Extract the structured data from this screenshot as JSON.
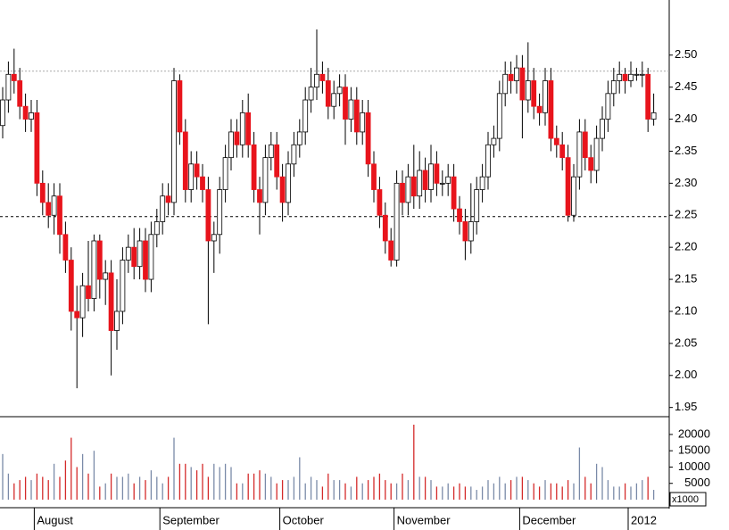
{
  "chart_data": {
    "type": "candlestick",
    "categories": [
      null,
      null,
      null,
      null,
      null,
      null,
      "August",
      null,
      null,
      null,
      null,
      null,
      null,
      null,
      null,
      null,
      null,
      null,
      null,
      null,
      null,
      null,
      null,
      null,
      null,
      null,
      null,
      null,
      "September",
      null,
      null,
      null,
      null,
      null,
      null,
      null,
      null,
      null,
      null,
      null,
      null,
      null,
      null,
      null,
      null,
      null,
      null,
      null,
      null,
      "October",
      null,
      null,
      null,
      null,
      null,
      null,
      null,
      null,
      null,
      null,
      null,
      null,
      null,
      null,
      null,
      null,
      null,
      null,
      null,
      "November",
      null,
      null,
      null,
      null,
      null,
      null,
      null,
      null,
      null,
      null,
      null,
      null,
      null,
      null,
      null,
      null,
      null,
      null,
      null,
      null,
      null,
      "December",
      null,
      null,
      null,
      null,
      null,
      null,
      null,
      null,
      null,
      null,
      null,
      null,
      null,
      null,
      null,
      null,
      null,
      null,
      "2012",
      null,
      null,
      null,
      null
    ],
    "open": [
      2.39,
      2.43,
      2.47,
      2.46,
      2.42,
      2.4,
      2.41,
      2.3,
      2.27,
      2.25,
      2.28,
      2.22,
      2.18,
      2.1,
      2.09,
      2.14,
      2.12,
      2.21,
      2.15,
      2.16,
      2.07,
      2.1,
      2.18,
      2.2,
      2.17,
      2.21,
      2.15,
      2.22,
      2.24,
      2.28,
      2.27,
      2.46,
      2.38,
      2.29,
      2.33,
      2.31,
      2.29,
      2.21,
      2.22,
      2.29,
      2.34,
      2.38,
      2.36,
      2.41,
      2.36,
      2.29,
      2.27,
      2.34,
      2.36,
      2.31,
      2.27,
      2.33,
      2.36,
      2.38,
      2.43,
      2.45,
      2.47,
      2.46,
      2.42,
      2.44,
      2.45,
      2.4,
      2.43,
      2.38,
      2.41,
      2.33,
      2.29,
      2.25,
      2.21,
      2.18,
      2.3,
      2.27,
      2.31,
      2.28,
      2.32,
      2.29,
      2.33,
      2.3,
      2.3,
      2.31,
      2.26,
      2.24,
      2.21,
      2.24,
      2.29,
      2.31,
      2.36,
      2.37,
      2.44,
      2.47,
      2.46,
      2.48,
      2.43,
      2.46,
      2.42,
      2.41,
      2.46,
      2.37,
      2.36,
      2.34,
      2.25,
      2.31,
      2.38,
      2.34,
      2.32,
      2.37,
      2.4,
      2.44,
      2.46,
      2.47,
      2.46,
      2.47,
      2.47,
      2.47,
      2.4
    ],
    "high": [
      2.45,
      2.49,
      2.51,
      2.48,
      2.44,
      2.43,
      2.43,
      2.32,
      2.3,
      2.3,
      2.3,
      2.24,
      2.2,
      2.14,
      2.16,
      2.21,
      2.22,
      2.22,
      2.18,
      2.18,
      2.15,
      2.2,
      2.22,
      2.23,
      2.23,
      2.23,
      2.24,
      2.26,
      2.3,
      2.3,
      2.48,
      2.47,
      2.4,
      2.35,
      2.35,
      2.33,
      2.31,
      2.24,
      2.31,
      2.36,
      2.4,
      2.4,
      2.43,
      2.44,
      2.38,
      2.31,
      2.36,
      2.38,
      2.38,
      2.33,
      2.35,
      2.38,
      2.4,
      2.45,
      2.48,
      2.54,
      2.49,
      2.48,
      2.46,
      2.47,
      2.47,
      2.45,
      2.45,
      2.43,
      2.43,
      2.35,
      2.31,
      2.27,
      2.23,
      2.32,
      2.32,
      2.33,
      2.36,
      2.35,
      2.34,
      2.36,
      2.35,
      2.32,
      2.33,
      2.33,
      2.28,
      2.26,
      2.3,
      2.31,
      2.33,
      2.38,
      2.39,
      2.46,
      2.49,
      2.49,
      2.5,
      2.5,
      2.52,
      2.48,
      2.44,
      2.48,
      2.48,
      2.39,
      2.38,
      2.36,
      2.33,
      2.4,
      2.4,
      2.36,
      2.39,
      2.42,
      2.46,
      2.48,
      2.49,
      2.48,
      2.49,
      2.48,
      2.49,
      2.48,
      2.44
    ],
    "low": [
      2.37,
      2.41,
      2.44,
      2.4,
      2.38,
      2.38,
      2.28,
      2.25,
      2.23,
      2.22,
      2.19,
      2.16,
      2.07,
      1.98,
      2.06,
      2.1,
      2.1,
      2.12,
      2.11,
      2.0,
      2.04,
      2.08,
      2.16,
      2.15,
      2.15,
      2.13,
      2.13,
      2.2,
      2.22,
      2.25,
      2.25,
      2.36,
      2.27,
      2.27,
      2.29,
      2.27,
      2.08,
      2.16,
      2.19,
      2.27,
      2.32,
      2.34,
      2.34,
      2.34,
      2.27,
      2.22,
      2.25,
      2.32,
      2.29,
      2.24,
      2.25,
      2.31,
      2.34,
      2.36,
      2.41,
      2.43,
      2.44,
      2.4,
      2.4,
      2.42,
      2.36,
      2.38,
      2.36,
      2.36,
      2.31,
      2.27,
      2.23,
      2.19,
      2.17,
      2.17,
      2.25,
      2.25,
      2.26,
      2.26,
      2.27,
      2.27,
      2.28,
      2.28,
      2.28,
      2.24,
      2.22,
      2.18,
      2.19,
      2.22,
      2.27,
      2.29,
      2.34,
      2.35,
      2.42,
      2.44,
      2.44,
      2.37,
      2.41,
      2.4,
      2.39,
      2.39,
      2.35,
      2.34,
      2.32,
      2.24,
      2.24,
      2.29,
      2.32,
      2.3,
      2.3,
      2.35,
      2.38,
      2.42,
      2.44,
      2.44,
      2.45,
      2.46,
      2.45,
      2.38,
      2.39
    ],
    "close": [
      2.43,
      2.47,
      2.46,
      2.42,
      2.4,
      2.41,
      2.3,
      2.27,
      2.25,
      2.28,
      2.22,
      2.18,
      2.1,
      2.09,
      2.14,
      2.12,
      2.21,
      2.15,
      2.16,
      2.07,
      2.1,
      2.18,
      2.2,
      2.17,
      2.21,
      2.15,
      2.22,
      2.24,
      2.28,
      2.27,
      2.46,
      2.38,
      2.29,
      2.33,
      2.31,
      2.29,
      2.21,
      2.22,
      2.29,
      2.34,
      2.38,
      2.36,
      2.41,
      2.36,
      2.29,
      2.27,
      2.34,
      2.36,
      2.31,
      2.27,
      2.33,
      2.36,
      2.38,
      2.43,
      2.45,
      2.47,
      2.46,
      2.42,
      2.44,
      2.45,
      2.4,
      2.43,
      2.38,
      2.41,
      2.33,
      2.29,
      2.25,
      2.21,
      2.18,
      2.3,
      2.27,
      2.31,
      2.28,
      2.32,
      2.29,
      2.33,
      2.3,
      2.3,
      2.31,
      2.26,
      2.24,
      2.21,
      2.24,
      2.29,
      2.31,
      2.36,
      2.37,
      2.44,
      2.47,
      2.46,
      2.48,
      2.43,
      2.46,
      2.42,
      2.41,
      2.46,
      2.37,
      2.36,
      2.34,
      2.25,
      2.31,
      2.38,
      2.34,
      2.32,
      2.37,
      2.4,
      2.44,
      2.46,
      2.47,
      2.46,
      2.47,
      2.47,
      2.47,
      2.4,
      2.41
    ],
    "volume": [
      14000,
      8000,
      5000,
      6000,
      7000,
      6000,
      8000,
      7000,
      6000,
      11000,
      7000,
      12000,
      19000,
      10000,
      14000,
      8000,
      15000,
      4000,
      5000,
      8000,
      7000,
      7000,
      8000,
      5000,
      7000,
      6000,
      9000,
      7000,
      5000,
      7000,
      19000,
      11000,
      11000,
      10000,
      9000,
      11000,
      7000,
      11000,
      10000,
      11000,
      10000,
      5000,
      5000,
      8000,
      8000,
      9000,
      8000,
      7000,
      5000,
      6000,
      6000,
      7000,
      13000,
      5000,
      7000,
      6000,
      4000,
      8000,
      6000,
      6000,
      5000,
      4000,
      7000,
      5000,
      6000,
      7000,
      8000,
      6000,
      5000,
      5000,
      8000,
      6000,
      23000,
      7000,
      7000,
      6000,
      4000,
      4000,
      5000,
      4000,
      5000,
      4000,
      4000,
      3000,
      4000,
      6000,
      5000,
      7000,
      5000,
      6000,
      7000,
      7000,
      6000,
      5000,
      4000,
      6000,
      5000,
      5000,
      4000,
      6000,
      5000,
      16000,
      7000,
      5000,
      11000,
      10000,
      6000,
      4000,
      4000,
      5000,
      4000,
      5000,
      6000,
      7000,
      3000
    ],
    "up_color": "#ffffff",
    "down_color": "#e8141c",
    "up_volume_color": "#7a8aa8",
    "down_volume_color": "#d42a2a",
    "ylim": [
      1.937,
      2.586
    ],
    "yticks": [
      1.95,
      {
        "value": 2.0,
        "label": "2.00"
      },
      2.05,
      {
        "value": 2.1,
        "label": "2.10"
      },
      2.15,
      {
        "value": 2.2,
        "label": "2.20"
      },
      2.25,
      {
        "value": 2.3,
        "label": "2.30"
      },
      2.35,
      {
        "value": 2.4,
        "label": "2.40"
      },
      2.45,
      {
        "value": 2.5,
        "label": "2.50"
      }
    ],
    "volume_ylim": [
      0,
      25450
    ],
    "volume_yticks": [
      5000,
      10000,
      15000,
      20000
    ],
    "volume_unit": "x1000",
    "hlines": [
      {
        "value": 2.475,
        "color": "#aaaaaa",
        "dash": "2,2"
      },
      {
        "value": 2.248,
        "color": "#000000",
        "dash": "3,3"
      }
    ]
  }
}
